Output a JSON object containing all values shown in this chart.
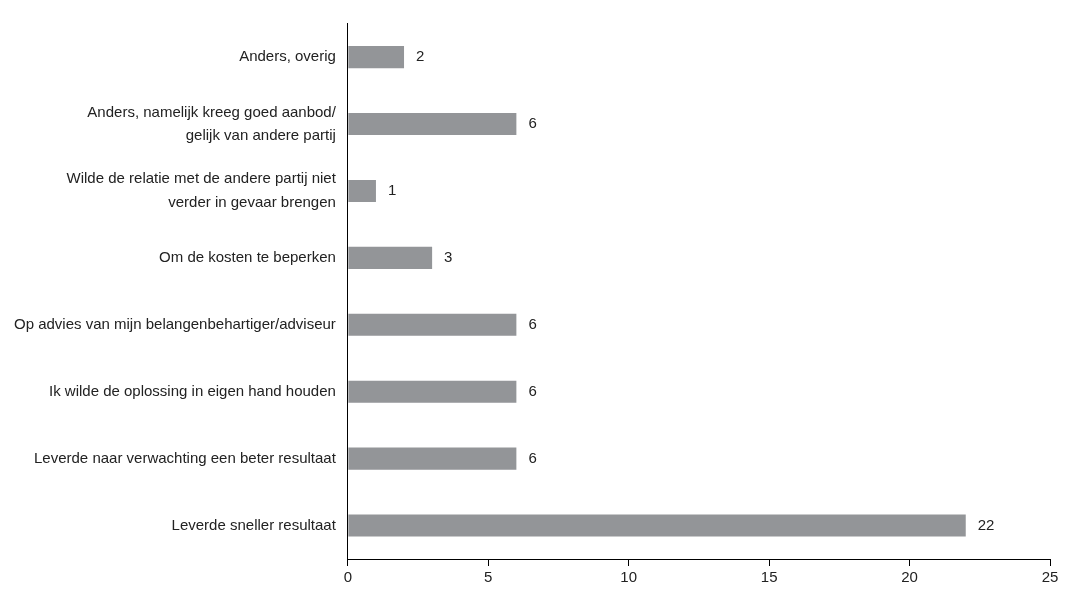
{
  "chart_data": {
    "type": "bar",
    "orientation": "horizontal",
    "categories": [
      "Anders, overig",
      "Anders, namelijk kreeg goed aanbod/\ngelijk van andere partij",
      "Wilde de relatie met de andere partij niet\nverder in gevaar brengen",
      "Om de kosten te beperken",
      "Op advies van mijn belangenbehartiger/adviseur",
      "Ik wilde de oplossing in eigen hand houden",
      "Leverde naar verwachting een beter resultaat",
      "Leverde sneller resultaat"
    ],
    "values": [
      2,
      6,
      1,
      3,
      6,
      6,
      6,
      22
    ],
    "color": "#939598",
    "xlim": [
      0,
      25
    ],
    "xticks": [
      0,
      5,
      10,
      15,
      20,
      25
    ],
    "grid": false,
    "legend": false,
    "data_labels": true
  }
}
